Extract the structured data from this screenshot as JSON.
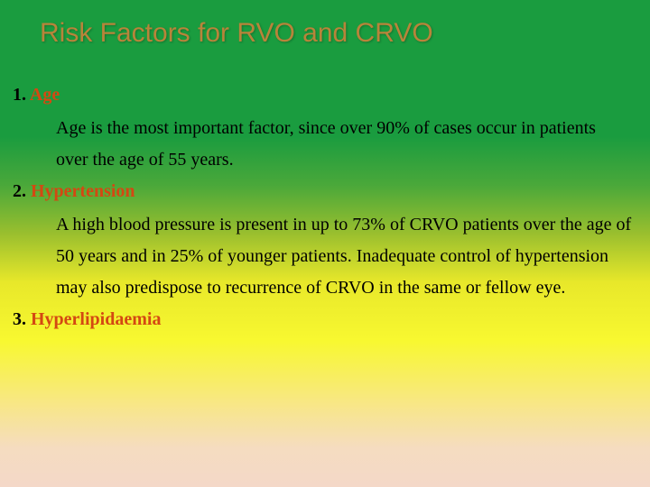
{
  "title": "Risk Factors for RVO and CRVO",
  "items": [
    {
      "num": "1. ",
      "label": "Age",
      "body": "Age is the most important factor, since over 90% of cases occur in patients over the age of 55 years."
    },
    {
      "num": "2. ",
      "label": "Hypertension",
      "body": "A high blood pressure is present in up to 73% of CRVO patients over the age of 50 years and in 25% of younger patients. Inadequate control of hypertension may also predispose to recurrence of CRVO in the same or fellow eye."
    },
    {
      "num": "3. ",
      "label": "Hyperlipidaemia",
      "body": ""
    }
  ],
  "colors": {
    "title_color": "#b8843a",
    "label_color": "#d44812",
    "body_color": "#000000"
  }
}
